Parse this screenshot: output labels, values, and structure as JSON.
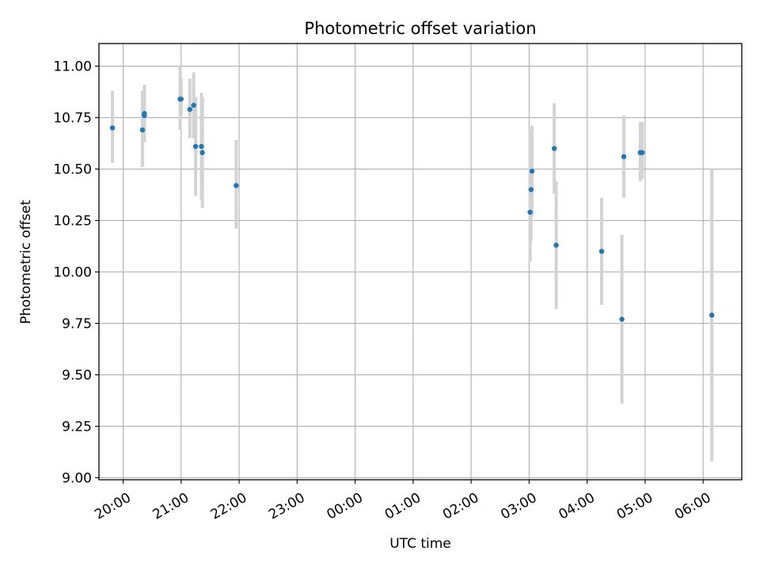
{
  "chart_data": {
    "type": "scatter",
    "title": "Photometric offset variation",
    "xlabel": "UTC time",
    "ylabel": "Photometric offset",
    "x_tick_labels": [
      "20:00",
      "21:00",
      "22:00",
      "23:00",
      "00:00",
      "01:00",
      "02:00",
      "03:00",
      "04:00",
      "05:00",
      "06:00"
    ],
    "y_tick_labels": [
      "9.00",
      "9.25",
      "9.50",
      "9.75",
      "10.00",
      "10.25",
      "10.50",
      "10.75",
      "11.00"
    ],
    "xlim": [
      "19:35",
      "06:40"
    ],
    "ylim": [
      8.99,
      11.11
    ],
    "grid": true,
    "point_color": "#1f77b4",
    "errorbar_color": "#d3d3d3",
    "points": [
      {
        "time": "19:49",
        "y": 10.7,
        "low": 10.53,
        "high": 10.88
      },
      {
        "time": "20:20",
        "y": 10.69,
        "low": 10.51,
        "high": 10.88
      },
      {
        "time": "20:22",
        "y": 10.77,
        "low": 10.63,
        "high": 10.91
      },
      {
        "time": "20:22",
        "y": 10.76,
        "low": 10.65,
        "high": 10.88
      },
      {
        "time": "20:59",
        "y": 10.84,
        "low": 10.69,
        "high": 11.0
      },
      {
        "time": "21:00",
        "y": 10.84,
        "low": 10.76,
        "high": 10.94
      },
      {
        "time": "21:09",
        "y": 10.79,
        "low": 10.65,
        "high": 10.94
      },
      {
        "time": "21:13",
        "y": 10.81,
        "low": 10.65,
        "high": 10.97
      },
      {
        "time": "21:15",
        "y": 10.61,
        "low": 10.37,
        "high": 10.85
      },
      {
        "time": "21:21",
        "y": 10.61,
        "low": 10.35,
        "high": 10.87
      },
      {
        "time": "21:22",
        "y": 10.58,
        "low": 10.31,
        "high": 10.85
      },
      {
        "time": "21:57",
        "y": 10.42,
        "low": 10.21,
        "high": 10.64
      },
      {
        "time": "03:01",
        "y": 10.29,
        "low": 10.05,
        "high": 10.69
      },
      {
        "time": "03:02",
        "y": 10.4,
        "low": 10.15,
        "high": 10.62
      },
      {
        "time": "03:03",
        "y": 10.49,
        "low": 10.27,
        "high": 10.71
      },
      {
        "time": "03:26",
        "y": 10.6,
        "low": 10.38,
        "high": 10.82
      },
      {
        "time": "03:28",
        "y": 10.13,
        "low": 9.82,
        "high": 10.44
      },
      {
        "time": "04:15",
        "y": 10.1,
        "low": 9.84,
        "high": 10.36
      },
      {
        "time": "04:36",
        "y": 9.77,
        "low": 9.36,
        "high": 10.18
      },
      {
        "time": "04:38",
        "y": 10.56,
        "low": 10.36,
        "high": 10.76
      },
      {
        "time": "04:55",
        "y": 10.58,
        "low": 10.44,
        "high": 10.73
      },
      {
        "time": "04:57",
        "y": 10.58,
        "low": 10.45,
        "high": 10.73
      },
      {
        "time": "06:09",
        "y": 9.79,
        "low": 9.08,
        "high": 10.5
      }
    ]
  }
}
